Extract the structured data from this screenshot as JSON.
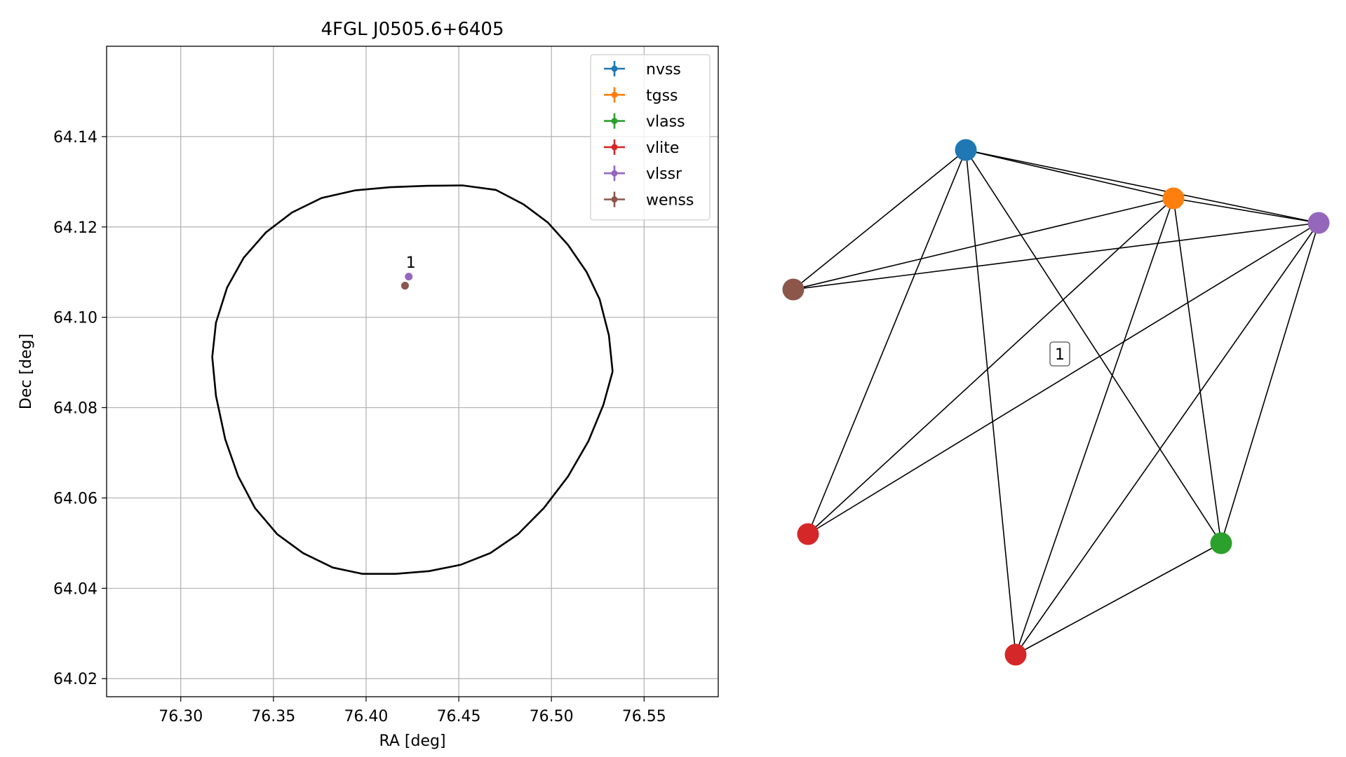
{
  "chart_data": [
    {
      "type": "scatter",
      "title": "4FGL J0505.6+6405",
      "xlabel": "RA [deg]",
      "ylabel": "Dec [deg]",
      "xlim": [
        76.26,
        76.59
      ],
      "ylim": [
        64.016,
        64.16
      ],
      "xticks": [
        76.3,
        76.35,
        76.4,
        76.45,
        76.5,
        76.55
      ],
      "yticks": [
        64.02,
        64.04,
        64.06,
        64.08,
        64.1,
        64.12,
        64.14
      ],
      "grid": true,
      "legend_position": "top-right",
      "colors": {
        "nvss": "#1f77b4",
        "tgss": "#ff7f0e",
        "vlass": "#2ca02c",
        "vlite": "#d62728",
        "vlssr": "#9467bd",
        "wenss": "#8c564b"
      },
      "series": [
        {
          "name": "nvss",
          "points": []
        },
        {
          "name": "tgss",
          "points": []
        },
        {
          "name": "vlass",
          "points": []
        },
        {
          "name": "vlite",
          "points": []
        },
        {
          "name": "vlssr",
          "points": [
            {
              "x": 76.423,
              "y": 64.109
            }
          ]
        },
        {
          "name": "wenss",
          "points": [
            {
              "x": 76.421,
              "y": 64.107
            }
          ]
        }
      ],
      "annotations": [
        {
          "text": "1",
          "x": 76.42,
          "y": 64.11
        }
      ],
      "uncertainty_ellipse": {
        "points": [
          [
            76.533,
            64.088
          ],
          [
            76.531,
            64.096
          ],
          [
            76.526,
            64.104
          ],
          [
            76.519,
            64.11
          ],
          [
            76.509,
            64.116
          ],
          [
            76.498,
            64.121
          ],
          [
            76.485,
            64.125
          ],
          [
            76.47,
            64.1282
          ],
          [
            76.452,
            64.1292
          ],
          [
            76.433,
            64.1291
          ],
          [
            76.413,
            64.1288
          ],
          [
            76.394,
            64.1281
          ],
          [
            76.376,
            64.1264
          ],
          [
            76.36,
            64.1232
          ],
          [
            76.346,
            64.1188
          ],
          [
            76.334,
            64.1132
          ],
          [
            76.325,
            64.1066
          ],
          [
            76.319,
            64.0988
          ],
          [
            76.317,
            64.0912
          ],
          [
            76.319,
            64.0826
          ],
          [
            76.324,
            64.073
          ],
          [
            76.331,
            64.0648
          ],
          [
            76.34,
            64.0578
          ],
          [
            76.352,
            64.052
          ],
          [
            76.366,
            64.0478
          ],
          [
            76.382,
            64.0446
          ],
          [
            76.398,
            64.0432
          ],
          [
            76.416,
            64.0432
          ],
          [
            76.434,
            64.0438
          ],
          [
            76.451,
            64.0452
          ],
          [
            76.467,
            64.0478
          ],
          [
            76.482,
            64.052
          ],
          [
            76.496,
            64.0578
          ],
          [
            76.509,
            64.0648
          ],
          [
            76.52,
            64.0726
          ],
          [
            76.528,
            64.0806
          ],
          [
            76.533,
            64.088
          ]
        ]
      }
    },
    {
      "type": "network",
      "annotations": [
        {
          "text": "1"
        }
      ],
      "nodes": [
        {
          "id": "n0",
          "color": "#1f77b4"
        },
        {
          "id": "n1",
          "color": "#ff7f0e"
        },
        {
          "id": "n2",
          "color": "#9467bd"
        },
        {
          "id": "n3",
          "color": "#8c564b"
        },
        {
          "id": "n4",
          "color": "#d62728"
        },
        {
          "id": "n5",
          "color": "#2ca02c"
        },
        {
          "id": "n6",
          "color": "#d62728"
        }
      ],
      "edges": [
        [
          "n0",
          "n1"
        ],
        [
          "n0",
          "n2"
        ],
        [
          "n0",
          "n3"
        ],
        [
          "n0",
          "n4"
        ],
        [
          "n0",
          "n5"
        ],
        [
          "n0",
          "n6"
        ],
        [
          "n1",
          "n2"
        ],
        [
          "n1",
          "n3"
        ],
        [
          "n1",
          "n4"
        ],
        [
          "n1",
          "n5"
        ],
        [
          "n1",
          "n6"
        ],
        [
          "n2",
          "n3"
        ],
        [
          "n2",
          "n4"
        ],
        [
          "n2",
          "n5"
        ],
        [
          "n2",
          "n6"
        ],
        [
          "n5",
          "n6"
        ]
      ]
    }
  ]
}
